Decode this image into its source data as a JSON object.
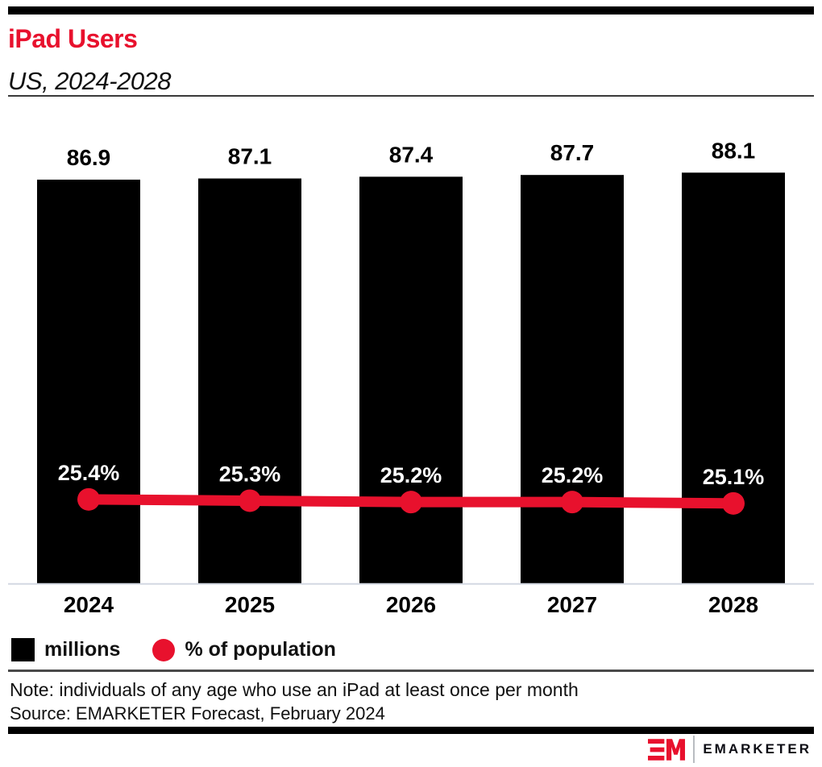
{
  "page": {
    "title": "iPad Users",
    "subtitle": "US, 2024-2028",
    "note": "Note: individuals of any age who use an iPad at least once per month",
    "source": "Source: EMARKETER Forecast, February 2024"
  },
  "brand": {
    "wordmark": "EMARKETER",
    "monogram": "EM"
  },
  "colors": {
    "accent_red": "#E8112D",
    "bar_black": "#000000",
    "axis_line": "#d3d8e2",
    "separator_dark": "#4a4a4a",
    "pct_label_white": "#ffffff"
  },
  "chart_data": {
    "type": "bar",
    "subtype": "bar-line-combo",
    "title": "iPad Users",
    "subtitle": "US, 2024-2028",
    "categories": [
      "2024",
      "2025",
      "2026",
      "2027",
      "2028"
    ],
    "series": [
      {
        "name": "millions",
        "type": "bar",
        "color": "#000000",
        "values": [
          86.9,
          87.1,
          87.4,
          87.7,
          88.1
        ],
        "labels": [
          "86.9",
          "87.1",
          "87.4",
          "87.7",
          "88.1"
        ]
      },
      {
        "name": "% of population",
        "type": "line",
        "color": "#E8112D",
        "values": [
          25.4,
          25.3,
          25.2,
          25.2,
          25.1
        ],
        "labels": [
          "25.4%",
          "25.3%",
          "25.2%",
          "25.2%",
          "25.1%"
        ]
      }
    ],
    "legend": [
      {
        "label": "millions",
        "swatch": "square",
        "color": "#000000"
      },
      {
        "label": "% of population",
        "swatch": "circle",
        "color": "#E8112D"
      }
    ],
    "grid": false,
    "legend_position": "bottom-left",
    "value_labels_shown": true
  }
}
